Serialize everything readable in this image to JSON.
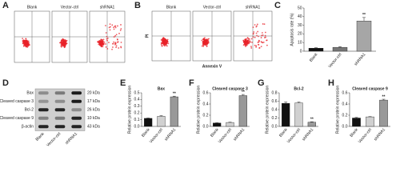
{
  "flow_cytometry": [
    {
      "label": "A",
      "samples": [
        "Blank",
        "Vector-ctrl",
        "shRNA1"
      ]
    },
    {
      "label": "B",
      "samples": [
        "Blank",
        "Vector-ctrl",
        "shRNA1"
      ],
      "y_axis": "PI",
      "x_axis": "Annexin V"
    }
  ],
  "western_blot": {
    "label": "D",
    "lanes": [
      "Blank",
      "Vector-ctrl",
      "shRNA1"
    ],
    "bands": [
      {
        "name": "Bax",
        "size": "20 kDa"
      },
      {
        "name": "Cleaved caspase 3",
        "size": "17 kDa"
      },
      {
        "name": "Bcl-2",
        "size": "26 kDa"
      },
      {
        "name": "Cleaved caspase 9",
        "size": "10 kDa"
      },
      {
        "name": "β-actin",
        "size": "43 kDa"
      }
    ]
  },
  "chart_data": [
    {
      "type": "bar",
      "panel": "C",
      "ylabel": "Apoptosis rate (%)",
      "categories": [
        "Blank",
        "Vector-ctrl",
        "shRNA1"
      ],
      "values": [
        3.5,
        4.5,
        35
      ],
      "errors": [
        0.5,
        0.8,
        4
      ],
      "colors": [
        "#111111",
        "#777777",
        "#a6a6a6"
      ],
      "ylim": [
        0,
        50
      ],
      "yticks": [
        0,
        10,
        20,
        30,
        40,
        50
      ],
      "annotation": "**"
    },
    {
      "type": "bar",
      "panel": "E",
      "title": "Bax",
      "ylabel": "Relative protein expression",
      "categories": [
        "Blank",
        "Vector-ctrl",
        "shRNA1"
      ],
      "values": [
        0.12,
        0.15,
        0.44
      ],
      "errors": [
        0.005,
        0.01,
        0.01
      ],
      "colors": [
        "#111111",
        "#d0d0d0",
        "#999999"
      ],
      "ylim": [
        0,
        0.5
      ],
      "yticks": [
        {
          "value": 0,
          "label": "0.0"
        },
        0.1,
        0.2,
        0.3,
        0.4,
        0.5
      ],
      "annotation": "**"
    },
    {
      "type": "bar",
      "panel": "F",
      "title": "Cleaved caspase 3",
      "ylabel": "Relative protein expression",
      "categories": [
        "Blank",
        "Vector-ctrl",
        "shRNA1"
      ],
      "values": [
        0.06,
        0.07,
        0.55
      ],
      "errors": [
        0.005,
        0.005,
        0.02
      ],
      "colors": [
        "#111111",
        "#d0d0d0",
        "#999999"
      ],
      "ylim": [
        0,
        0.6
      ],
      "yticks": [
        {
          "value": 0,
          "label": "0.0"
        },
        0.2,
        0.4,
        0.6
      ],
      "annotation": "**"
    },
    {
      "type": "bar",
      "panel": "G",
      "title": "Bcl-2",
      "ylabel": "Relative protein expression",
      "categories": [
        "Blank",
        "Vector-ctrl",
        "shRNA1"
      ],
      "values": [
        0.55,
        0.56,
        0.1
      ],
      "errors": [
        0.03,
        0.02,
        0.01
      ],
      "colors": [
        "#111111",
        "#d0d0d0",
        "#999999"
      ],
      "ylim": [
        0,
        0.8
      ],
      "yticks": [
        {
          "value": 0,
          "label": "0.0"
        },
        0.2,
        0.4,
        0.6,
        0.8
      ],
      "annotation": "**"
    },
    {
      "type": "bar",
      "panel": "H",
      "title": "Cleaved caspase 9",
      "ylabel": "Relative protein expression",
      "categories": [
        "Blank",
        "Vector-ctrl",
        "shRNA1"
      ],
      "values": [
        0.15,
        0.17,
        0.47
      ],
      "errors": [
        0.01,
        0.005,
        0.015
      ],
      "colors": [
        "#111111",
        "#d0d0d0",
        "#999999"
      ],
      "ylim": [
        0,
        0.6
      ],
      "yticks": [
        {
          "value": 0,
          "label": "0.0"
        },
        0.2,
        0.4,
        0.6
      ],
      "annotation": "**"
    }
  ]
}
